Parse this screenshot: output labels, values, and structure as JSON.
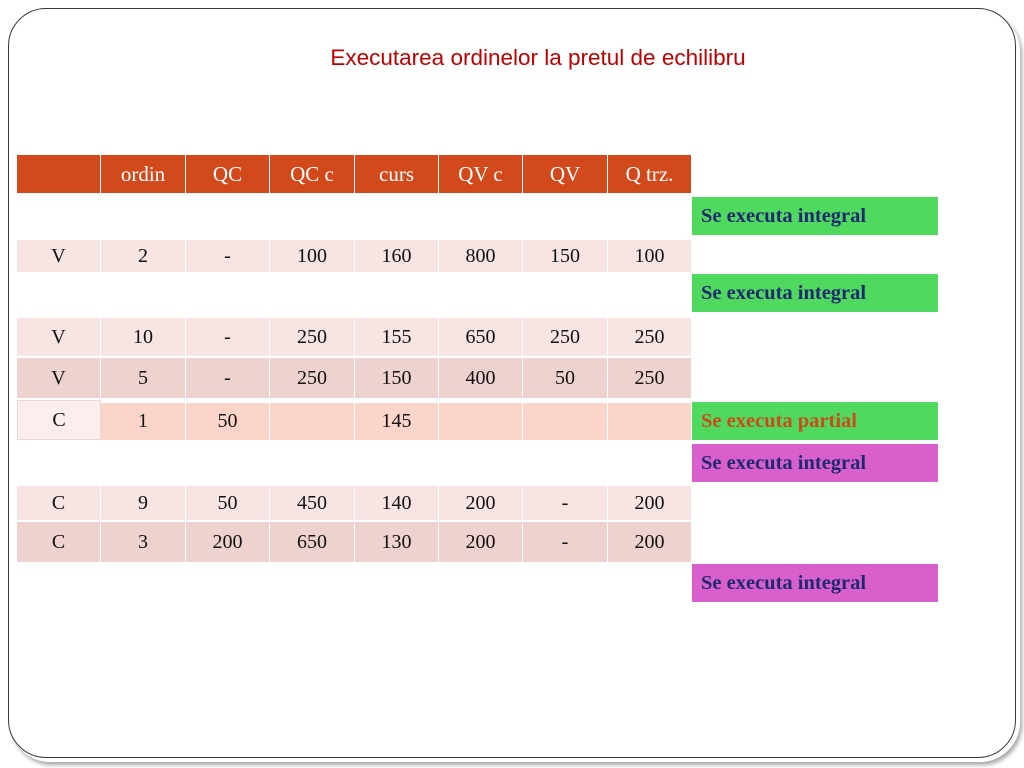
{
  "title": "Executarea ordinelor la pretul de echilibru",
  "table": {
    "headers": [
      "",
      "ordin",
      "QC",
      "QC c",
      "curs",
      "QV c",
      "QV",
      "Q trz."
    ],
    "rows": [
      [
        "V",
        "2",
        "-",
        "100",
        "160",
        "800",
        "150",
        "100"
      ],
      [
        "V",
        "10",
        "-",
        "250",
        "155",
        "650",
        "250",
        "250"
      ],
      [
        "V",
        "5",
        "-",
        "250",
        "150",
        "400",
        "50",
        "250"
      ],
      [
        "C",
        "1",
        "50",
        "",
        "145",
        "",
        "",
        ""
      ],
      [
        "C",
        "9",
        "50",
        "450",
        "140",
        "200",
        "-",
        "200"
      ],
      [
        "C",
        "3",
        "200",
        "650",
        "130",
        "200",
        "-",
        "200"
      ]
    ]
  },
  "status_labels": [
    {
      "text": "Se executa integral",
      "fill": "#50d95f",
      "text_color": "#1f2a6e"
    },
    {
      "text": "Se executa integral",
      "fill": "#50d95f",
      "text_color": "#1f2a6e"
    },
    {
      "text": "Se executa partial",
      "fill": "#50d95f",
      "text_color": "#cc4a18"
    },
    {
      "text": "Se executa integral",
      "fill": "#d95fcc",
      "text_color": "#1f2a6e"
    },
    {
      "text": "Se executa integral",
      "fill": "#d95fcc",
      "text_color": "#1f2a6e"
    }
  ],
  "colors": {
    "title": "#c00000",
    "header_fill": "#d24a1c",
    "row_light": "#f7e4e3",
    "row_dark": "#eed2d0",
    "row_partial": "#fbd5ca"
  }
}
